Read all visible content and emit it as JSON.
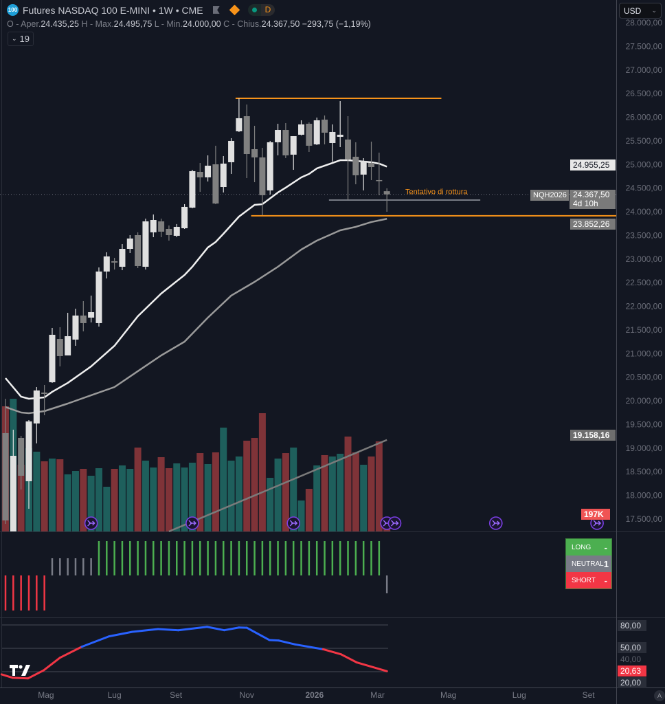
{
  "header": {
    "symbol_logo": "100",
    "title": "Futures NASDAQ 100 E-MINI • 1W • CME",
    "status_letter": "D",
    "ohlc": {
      "o_label": "O - Aper.",
      "o": "24.435,25",
      "h_label": "H - Max.",
      "h": "24.495,75",
      "l_label": "L - Min.",
      "l": "24.000,00",
      "c_label": "C - Chius.",
      "c": "24.367,50",
      "change": "−293,75 (−1,19%)"
    },
    "indicators_count": "19"
  },
  "currency": "USD",
  "price_axis": {
    "ticks": [
      "28.000,00",
      "27.500,00",
      "27.000,00",
      "26.500,00",
      "26.000,00",
      "25.500,00",
      "25.000,00",
      "24.500,00",
      "24.000,00",
      "23.500,00",
      "23.000,00",
      "22.500,00",
      "22.000,00",
      "21.500,00",
      "21.000,00",
      "20.500,00",
      "20.000,00",
      "19.500,00",
      "19.000,00",
      "18.500,00",
      "18.000,00",
      "17.500,00"
    ],
    "tick_values": [
      28000,
      27500,
      27000,
      26500,
      26000,
      25500,
      25000,
      24500,
      24000,
      23500,
      23000,
      22500,
      22000,
      21500,
      21000,
      20500,
      20000,
      19500,
      19000,
      18500,
      18000,
      17500
    ],
    "labels": {
      "ma_fast": "24.955,25",
      "symbol": "NQH2026",
      "last_price": "24.367,50",
      "countdown": "4d 10h",
      "ma_slow": "23.852,26",
      "volume_ma": "19.158,16",
      "volume": "197K"
    }
  },
  "annotation": {
    "text": "Tentativo di rottura",
    "color": "#f7931a"
  },
  "time_axis": {
    "ticks": [
      {
        "label": "Mag",
        "i": 6.2
      },
      {
        "label": "Lug",
        "i": 15
      },
      {
        "label": "Set",
        "i": 22.9
      },
      {
        "label": "Nov",
        "i": 32
      },
      {
        "label": "2026",
        "i": 40.7,
        "bold": true
      },
      {
        "label": "Mar",
        "i": 48.8
      },
      {
        "label": "Mag",
        "i": 57.9
      },
      {
        "label": "Lug",
        "i": 67
      },
      {
        "label": "Set",
        "i": 75.9
      }
    ],
    "auto_button": "A"
  },
  "signal_table": {
    "long_label": "LONG",
    "long_value": "-",
    "neutral_label": "NEUTRAL",
    "neutral_value": "1",
    "short_label": "SHORT",
    "short_value": "-"
  },
  "oscillator_axis": {
    "l80": "80,00",
    "l50": "50,00",
    "l40": "40,00",
    "current": "20,63",
    "l20": "20,00"
  },
  "chart_data": {
    "type": "candlestick",
    "interval": "1W",
    "ylim": [
      17500,
      28000
    ],
    "colors": {
      "bull": "#e0e0e0",
      "bear": "#808080",
      "vol_bull": "#1e5f5c",
      "vol_bear": "#7f3338",
      "ma_fast": "#f0f0f0",
      "ma_slow": "#9a9a9a",
      "level": "#f7931a",
      "signal_long": "#4caf50",
      "signal_neutral": "#787b86",
      "signal_short": "#f23645",
      "osc_up": "#2962ff",
      "osc_down": "#f23645",
      "event": "#7b3fe4"
    },
    "ohlc": [
      [
        19318,
        20045,
        17398,
        17471
      ],
      [
        17238,
        19391,
        17238,
        18838
      ],
      [
        19216,
        19260,
        18125,
        18416
      ],
      [
        18300,
        19594,
        17718,
        19565
      ],
      [
        19522,
        20292,
        19100,
        20220
      ],
      [
        20176,
        20336,
        19696,
        20147
      ],
      [
        20394,
        21543,
        20380,
        21398
      ],
      [
        21310,
        21558,
        20729,
        20947
      ],
      [
        20961,
        21863,
        20961,
        21368
      ],
      [
        21296,
        21950,
        21165,
        21805
      ],
      [
        21805,
        22110,
        21470,
        21645
      ],
      [
        21761,
        22227,
        21659,
        21877
      ],
      [
        21645,
        22823,
        21572,
        22736
      ],
      [
        22736,
        23143,
        22590,
        23055
      ],
      [
        22954,
        23026,
        22779,
        22925
      ],
      [
        22837,
        23317,
        22765,
        23215
      ],
      [
        23215,
        23506,
        23128,
        23434
      ],
      [
        23506,
        23565,
        22808,
        22852
      ],
      [
        22837,
        23855,
        22779,
        23797
      ],
      [
        23565,
        23943,
        23463,
        23826
      ],
      [
        23797,
        23855,
        23463,
        23579
      ],
      [
        23637,
        23710,
        23390,
        23506
      ],
      [
        23492,
        23740,
        23463,
        23681
      ],
      [
        23652,
        24161,
        23637,
        24103
      ],
      [
        24088,
        24888,
        24074,
        24859
      ],
      [
        24844,
        25033,
        24422,
        24728
      ],
      [
        24728,
        25193,
        24641,
        24975
      ],
      [
        25004,
        25397,
        24161,
        24175
      ],
      [
        24524,
        25179,
        24408,
        25019
      ],
      [
        25048,
        25557,
        24801,
        25499
      ],
      [
        25702,
        26400,
        25688,
        25979
      ],
      [
        26022,
        26269,
        24713,
        25222
      ],
      [
        25324,
        25819,
        24626,
        25150
      ],
      [
        25150,
        25353,
        23928,
        24350
      ],
      [
        24452,
        25499,
        24364,
        25470
      ],
      [
        25470,
        25862,
        25193,
        25731
      ],
      [
        25731,
        25877,
        25135,
        25193
      ],
      [
        25208,
        25600,
        24888,
        25600
      ],
      [
        25630,
        25935,
        25615,
        25848
      ],
      [
        25862,
        25891,
        25266,
        25397
      ],
      [
        25426,
        25993,
        25411,
        25935
      ],
      [
        25949,
        26037,
        25426,
        25673
      ],
      [
        25455,
        25848,
        25062,
        25688
      ],
      [
        25586,
        26342,
        25368,
        25630
      ],
      [
        25528,
        26022,
        24248,
        25106
      ],
      [
        25164,
        25470,
        24582,
        24772
      ],
      [
        24786,
        25135,
        24452,
        25077
      ],
      [
        25033,
        25484,
        24670,
        24946
      ],
      [
        24670,
        25251,
        24350,
        24655
      ],
      [
        24435,
        24496,
        24000,
        24368
      ]
    ],
    "volume_k": [
      4477,
      4748,
      2386,
      2977,
      2854,
      2509,
      2608,
      2583,
      2042,
      2165,
      2239,
      1993,
      2263,
      1599,
      2239,
      2362,
      2239,
      3001,
      2534,
      2288,
      2657,
      2263,
      2435,
      2288,
      2460,
      2804,
      2411,
      2829,
      3715,
      2534,
      2681,
      3247,
      3346,
      4231,
      1919,
      2608,
      2804,
      3001,
      1107,
      1525,
      2362,
      2731,
      2681,
      2780,
      3395,
      2829,
      2386,
      2681,
      3223,
      197
    ],
    "volume_ma_k": [
      [
        22,
        0
      ],
      [
        50,
        3275
      ]
    ],
    "ma_fast": [
      [
        1,
        20481
      ],
      [
        3,
        20089
      ],
      [
        4,
        20045
      ],
      [
        6,
        20074
      ],
      [
        7,
        20191
      ],
      [
        9,
        20380
      ],
      [
        12,
        20729
      ],
      [
        15,
        21165
      ],
      [
        18,
        21790
      ],
      [
        21,
        22270
      ],
      [
        24,
        22663
      ],
      [
        25,
        22837
      ],
      [
        27,
        23245
      ],
      [
        28,
        23361
      ],
      [
        29,
        23535
      ],
      [
        31,
        23899
      ],
      [
        33,
        24146
      ],
      [
        34,
        24161
      ],
      [
        36,
        24408
      ],
      [
        37,
        24510
      ],
      [
        39,
        24728
      ],
      [
        40,
        24801
      ],
      [
        41,
        24917
      ],
      [
        43,
        25033
      ],
      [
        44,
        25091
      ],
      [
        45,
        25091
      ],
      [
        47,
        25062
      ],
      [
        48,
        25048
      ],
      [
        49,
        25019
      ],
      [
        50,
        24955
      ]
    ],
    "ma_slow": [
      [
        1,
        19870
      ],
      [
        3,
        19754
      ],
      [
        4,
        19740
      ],
      [
        6,
        19783
      ],
      [
        9,
        19943
      ],
      [
        12,
        20118
      ],
      [
        15,
        20292
      ],
      [
        18,
        20627
      ],
      [
        21,
        20961
      ],
      [
        24,
        21252
      ],
      [
        27,
        21761
      ],
      [
        30,
        22227
      ],
      [
        33,
        22517
      ],
      [
        36,
        22837
      ],
      [
        39,
        23201
      ],
      [
        41,
        23390
      ],
      [
        44,
        23608
      ],
      [
        46,
        23681
      ],
      [
        48,
        23783
      ],
      [
        50,
        23852
      ]
    ],
    "levels": [
      {
        "price": 26400,
        "from": 31,
        "to": 57,
        "color": "#f7931a"
      },
      {
        "price": 23915,
        "from": 33,
        "to": null,
        "color": "#f7931a"
      },
      {
        "price": 24248,
        "from": 43,
        "to": 62,
        "color": "#b2b5be"
      }
    ],
    "events": [
      12,
      25,
      38,
      50,
      51,
      64,
      77
    ],
    "signals": [
      "short",
      "short",
      "short",
      "short",
      "short",
      "short",
      "neutral",
      "neutral",
      "neutral",
      "neutral",
      "neutral",
      "neutral",
      "long",
      "long",
      "long",
      "long",
      "long",
      "long",
      "long",
      "long",
      "long",
      "long",
      "long",
      "long",
      "long",
      "long",
      "long",
      "long",
      "long",
      "long",
      "long",
      "long",
      "long",
      "long",
      "long",
      "long",
      "long",
      "long",
      "long",
      "long",
      "long",
      "long",
      "long",
      "long",
      "long",
      "long",
      "long",
      "long",
      "long",
      "neutral"
    ],
    "oscillator": [
      [
        0.5,
        16.5
      ],
      [
        1.9,
        12.2
      ],
      [
        3.9,
        11.4
      ],
      [
        5.9,
        21.7
      ],
      [
        8,
        37.9
      ],
      [
        10.8,
        52
      ],
      [
        14.3,
        65.3
      ],
      [
        17.3,
        71.2
      ],
      [
        20.6,
        74.7
      ],
      [
        23.2,
        73.2
      ],
      [
        26.9,
        77.6
      ],
      [
        29.1,
        73.2
      ],
      [
        31,
        76.7
      ],
      [
        32,
        76.4
      ],
      [
        34.9,
        60.6
      ],
      [
        36.1,
        60
      ],
      [
        38.2,
        55
      ],
      [
        41.8,
        48.8
      ],
      [
        44.1,
        42.3
      ],
      [
        46.1,
        32
      ],
      [
        50,
        20.63
      ]
    ],
    "oscillator_levels": [
      80,
      50,
      20
    ]
  }
}
